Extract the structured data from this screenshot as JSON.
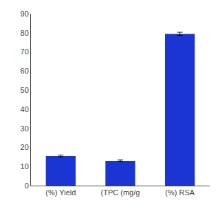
{
  "chart_data": {
    "type": "bar",
    "categories": [
      "(%) Yield",
      "(TPC (mg/g",
      "(%) RSA"
    ],
    "values": [
      15.5,
      13.0,
      79.5
    ],
    "errors": [
      0.5,
      0.4,
      0.8
    ],
    "color": "#1a35d4",
    "ylim": [
      0,
      90
    ],
    "yticks": [
      0,
      10,
      20,
      30,
      40,
      50,
      60,
      70,
      80,
      90
    ],
    "grid": false
  }
}
